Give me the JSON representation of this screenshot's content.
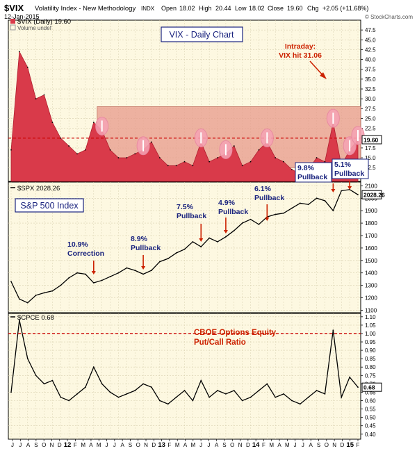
{
  "header": {
    "symbol": "$VIX",
    "name": "Volatility Index - New Methodology",
    "exchange": "INDX",
    "date": "12-Jan-2015",
    "open_label": "Open",
    "open": "18.02",
    "high_label": "High",
    "high": "20.44",
    "low_label": "Low",
    "low": "18.02",
    "close_label": "Close",
    "close": "19.60",
    "chg_label": "Chg",
    "chg": "+2.05 (+11.68%)",
    "watermark": "© StockCharts.com"
  },
  "colors": {
    "vix_fill": "#d93a4a",
    "band": "#e7998a",
    "panel_bg": "#fdf8e1",
    "line": "#000000",
    "ref_line": "#cc0000",
    "annotation_text": "#1a237e",
    "annotation_red": "#cc2200",
    "box_border": "#1a237e",
    "circle": "#f4a3b4"
  },
  "chart_data": [
    {
      "type": "area",
      "legend_label": "$VIX (Daily) 19.60",
      "legend_label2": "Volume undef",
      "title_box": "VIX - Daily Chart",
      "intraday_note": [
        "Intraday:",
        "VIX hit 31.06"
      ],
      "last_value": "19.60",
      "reference_line": 20,
      "highlight_band": [
        12.5,
        28
      ],
      "ylim": [
        9,
        50
      ],
      "yticks": [
        "47.5",
        "45.0",
        "42.5",
        "40.0",
        "37.5",
        "35.0",
        "32.5",
        "30.0",
        "27.5",
        "25.0",
        "22.5",
        "20.0",
        "17.5",
        "15.0",
        "12.5"
      ],
      "x": [
        "2011-07",
        "2011-08",
        "2011-09",
        "2011-10",
        "2011-11",
        "2011-12",
        "2012-01",
        "2012-02",
        "2012-03",
        "2012-04",
        "2012-05",
        "2012-06",
        "2012-07",
        "2012-08",
        "2012-09",
        "2012-10",
        "2012-11",
        "2012-12",
        "2013-01",
        "2013-02",
        "2013-03",
        "2013-04",
        "2013-05",
        "2013-06",
        "2013-07",
        "2013-08",
        "2013-09",
        "2013-10",
        "2013-11",
        "2013-12",
        "2014-01",
        "2014-02",
        "2014-03",
        "2014-04",
        "2014-05",
        "2014-06",
        "2014-07",
        "2014-08",
        "2014-09",
        "2014-10",
        "2014-11",
        "2014-12",
        "2015-01"
      ],
      "values": [
        17,
        42,
        38,
        30,
        31,
        24,
        20,
        18,
        16,
        17,
        24,
        22,
        17,
        15,
        15,
        16,
        17,
        19,
        15,
        13,
        13,
        14,
        13,
        19,
        14,
        15,
        16,
        18,
        13,
        14,
        17,
        19,
        15,
        14,
        12,
        11,
        12,
        15,
        14,
        24,
        13,
        17,
        19.6
      ],
      "circled_peaks": [
        "2012-06",
        "2012-11",
        "2013-06",
        "2013-09",
        "2014-02",
        "2014-10",
        "2014-12",
        "2015-01"
      ]
    },
    {
      "type": "line",
      "legend_label": "$SPX 2028.26",
      "title_box": "S&P 500 Index",
      "last_value": "2028.26",
      "ylim": [
        1080,
        2130
      ],
      "yticks": [
        "2100",
        "2000",
        "1900",
        "1800",
        "1700",
        "1600",
        "1500",
        "1400",
        "1300",
        "1200",
        "1100"
      ],
      "x": [
        "2011-07",
        "2011-08",
        "2011-09",
        "2011-10",
        "2011-11",
        "2011-12",
        "2012-01",
        "2012-02",
        "2012-03",
        "2012-04",
        "2012-05",
        "2012-06",
        "2012-07",
        "2012-08",
        "2012-09",
        "2012-10",
        "2012-11",
        "2012-12",
        "2013-01",
        "2013-02",
        "2013-03",
        "2013-04",
        "2013-05",
        "2013-06",
        "2013-07",
        "2013-08",
        "2013-09",
        "2013-10",
        "2013-11",
        "2013-12",
        "2014-01",
        "2014-02",
        "2014-03",
        "2014-04",
        "2014-05",
        "2014-06",
        "2014-07",
        "2014-08",
        "2014-09",
        "2014-10",
        "2014-11",
        "2014-12",
        "2015-01"
      ],
      "values": [
        1330,
        1190,
        1160,
        1220,
        1240,
        1255,
        1300,
        1360,
        1400,
        1390,
        1320,
        1340,
        1370,
        1400,
        1440,
        1420,
        1390,
        1420,
        1490,
        1515,
        1560,
        1590,
        1650,
        1610,
        1680,
        1650,
        1690,
        1740,
        1800,
        1830,
        1790,
        1850,
        1870,
        1880,
        1920,
        1960,
        1950,
        2000,
        1980,
        1900,
        2060,
        2070,
        2028.26
      ],
      "annotations": [
        {
          "text": [
            "10.9%",
            "Correction"
          ],
          "x": "2012-05"
        },
        {
          "text": [
            "8.9%",
            "Pullback"
          ],
          "x": "2012-11"
        },
        {
          "text": [
            "7.5%",
            "Pullback"
          ],
          "x": "2013-06"
        },
        {
          "text": [
            "4.9%",
            "Pullback"
          ],
          "x": "2013-09"
        },
        {
          "text": [
            "6.1%",
            "Pullback"
          ],
          "x": "2014-02"
        },
        {
          "text": [
            "9.8%",
            "Pullback"
          ],
          "x": "2014-10"
        },
        {
          "text": [
            "5.1%",
            "Pullback"
          ],
          "x": "2014-12"
        }
      ]
    },
    {
      "type": "line",
      "legend_label": "$CPCE 0.68",
      "title_box": [
        "CBOE Options Equity",
        "Put/Call Ratio"
      ],
      "last_value": "0.68",
      "reference_line": 1.0,
      "ylim": [
        0.37,
        1.12
      ],
      "yticks": [
        "1.10",
        "1.05",
        "1.00",
        "0.95",
        "0.90",
        "0.85",
        "0.80",
        "0.75",
        "0.70",
        "0.65",
        "0.60",
        "0.55",
        "0.50",
        "0.45",
        "0.40"
      ],
      "x": [
        "2011-07",
        "2011-08",
        "2011-09",
        "2011-10",
        "2011-11",
        "2011-12",
        "2012-01",
        "2012-02",
        "2012-03",
        "2012-04",
        "2012-05",
        "2012-06",
        "2012-07",
        "2012-08",
        "2012-09",
        "2012-10",
        "2012-11",
        "2012-12",
        "2013-01",
        "2013-02",
        "2013-03",
        "2013-04",
        "2013-05",
        "2013-06",
        "2013-07",
        "2013-08",
        "2013-09",
        "2013-10",
        "2013-11",
        "2013-12",
        "2014-01",
        "2014-02",
        "2014-03",
        "2014-04",
        "2014-05",
        "2014-06",
        "2014-07",
        "2014-08",
        "2014-09",
        "2014-10",
        "2014-11",
        "2014-12",
        "2015-01"
      ],
      "values": [
        0.65,
        1.08,
        0.85,
        0.75,
        0.7,
        0.72,
        0.62,
        0.6,
        0.64,
        0.68,
        0.8,
        0.7,
        0.65,
        0.62,
        0.64,
        0.66,
        0.7,
        0.68,
        0.6,
        0.58,
        0.62,
        0.66,
        0.6,
        0.72,
        0.62,
        0.66,
        0.64,
        0.66,
        0.6,
        0.62,
        0.66,
        0.7,
        0.62,
        0.64,
        0.6,
        0.58,
        0.62,
        0.66,
        0.64,
        1.02,
        0.62,
        0.74,
        0.68
      ]
    }
  ],
  "x_axis": {
    "labels": [
      "J",
      "J",
      "A",
      "S",
      "O",
      "N",
      "D",
      "12",
      "F",
      "M",
      "A",
      "M",
      "J",
      "J",
      "A",
      "S",
      "O",
      "N",
      "D",
      "13",
      "F",
      "M",
      "A",
      "M",
      "J",
      "J",
      "A",
      "S",
      "O",
      "N",
      "D",
      "14",
      "F",
      "M",
      "A",
      "M",
      "J",
      "J",
      "A",
      "S",
      "O",
      "N",
      "D",
      "15",
      "F"
    ]
  }
}
